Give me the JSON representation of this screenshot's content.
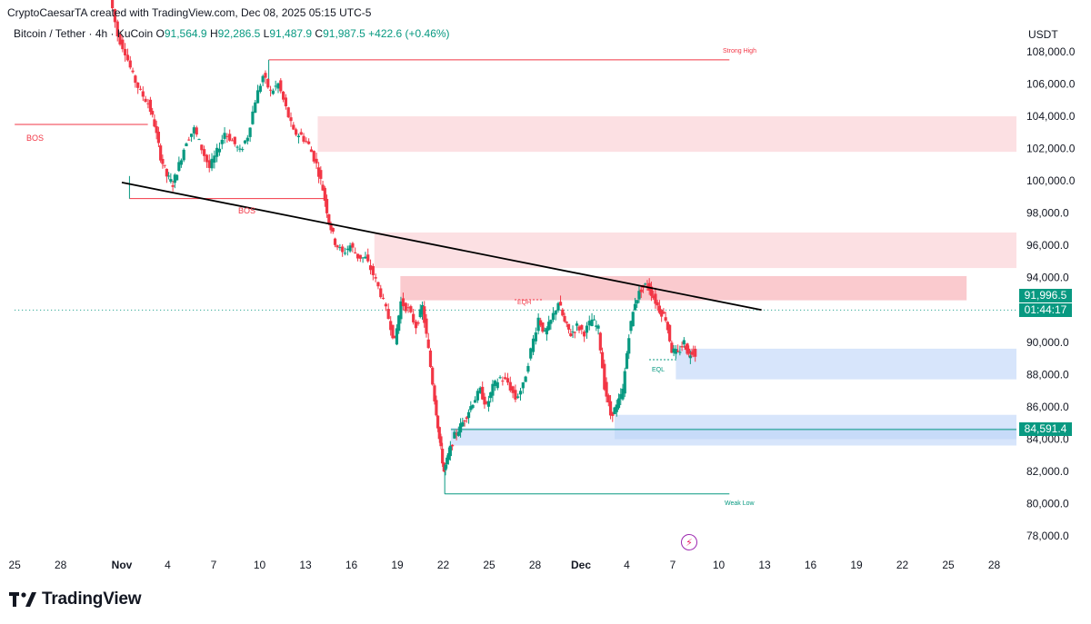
{
  "header": {
    "attribution": "CryptoCaesarTA created with TradingView.com, Dec 08, 2025 05:15 UTC-5",
    "symbol": "Bitcoin / Tether · 4h · KuCoin",
    "open_label": "O",
    "open": "91,564.9",
    "high_label": "H",
    "high": "92,286.5",
    "low_label": "L",
    "low": "91,487.9",
    "close_label": "C",
    "close": "91,987.5",
    "change": "+422.6 (+0.46%)"
  },
  "axis": {
    "currency": "USDT"
  },
  "brand": {
    "name": "TradingView"
  },
  "badges": {
    "last_price": "91,996.5",
    "countdown": "01:44:17",
    "support_price": "84,591.4"
  },
  "annotations": {
    "strong_high": "Strong High",
    "weak_low": "Weak Low",
    "bos_left": "BOS",
    "bos_mid": "BOS",
    "eqh": "EQH",
    "eql": "EQL"
  },
  "colors": {
    "up": "#089981",
    "down": "#f23645",
    "supply": "#f8bbc0",
    "supply_strong": "#f7a6ae",
    "demand": "#bcd4f8",
    "trendline": "#000000"
  },
  "chart_data": {
    "type": "candlestick",
    "title": "Bitcoin / Tether · 4h · KuCoin",
    "timeframe": "4h",
    "ylim": [
      76500,
      109500
    ],
    "y_ticks": [
      78000,
      80000,
      82000,
      84000,
      86000,
      88000,
      90000,
      92000,
      94000,
      96000,
      98000,
      100000,
      102000,
      104000,
      106000,
      108000
    ],
    "x_ticks": [
      "25",
      "28",
      "Nov",
      "4",
      "7",
      "10",
      "13",
      "16",
      "19",
      "22",
      "25",
      "28",
      "Dec",
      "4",
      "7",
      "10",
      "13",
      "16",
      "19",
      "22",
      "25",
      "28"
    ],
    "x_tick_days": [
      -7,
      -4,
      0,
      3,
      6,
      9,
      12,
      15,
      18,
      21,
      24,
      27,
      30,
      33,
      36,
      39,
      42,
      45,
      48,
      51,
      54,
      57
    ],
    "price_path": [
      [
        -0.7,
        111500
      ],
      [
        -0.2,
        109000
      ],
      [
        0.3,
        108000
      ],
      [
        0.8,
        106500
      ],
      [
        1.3,
        105500
      ],
      [
        1.8,
        104800
      ],
      [
        2.2,
        103500
      ],
      [
        2.6,
        101500
      ],
      [
        3.0,
        100300
      ],
      [
        3.4,
        99800
      ],
      [
        3.8,
        101000
      ],
      [
        4.3,
        102500
      ],
      [
        4.8,
        103200
      ],
      [
        5.3,
        102000
      ],
      [
        5.8,
        100800
      ],
      [
        6.3,
        101800
      ],
      [
        6.8,
        103000
      ],
      [
        7.3,
        102500
      ],
      [
        7.8,
        101800
      ],
      [
        8.3,
        102800
      ],
      [
        8.8,
        105000
      ],
      [
        9.3,
        106500
      ],
      [
        9.8,
        105500
      ],
      [
        10.3,
        106000
      ],
      [
        10.8,
        104500
      ],
      [
        11.3,
        103000
      ],
      [
        11.8,
        102800
      ],
      [
        12.3,
        102200
      ],
      [
        12.8,
        101000
      ],
      [
        13.2,
        99500
      ],
      [
        13.6,
        97500
      ],
      [
        14.0,
        96200
      ],
      [
        14.5,
        95500
      ],
      [
        15.0,
        96000
      ],
      [
        15.5,
        95300
      ],
      [
        16.0,
        95200
      ],
      [
        16.5,
        94200
      ],
      [
        17.0,
        93000
      ],
      [
        17.5,
        91500
      ],
      [
        17.9,
        90000
      ],
      [
        18.3,
        92500
      ],
      [
        18.8,
        92000
      ],
      [
        19.3,
        91000
      ],
      [
        19.7,
        92200
      ],
      [
        20.1,
        89500
      ],
      [
        20.5,
        86500
      ],
      [
        20.8,
        84000
      ],
      [
        21.1,
        82000
      ],
      [
        21.4,
        83000
      ],
      [
        21.8,
        84200
      ],
      [
        22.2,
        84800
      ],
      [
        22.6,
        85500
      ],
      [
        23.0,
        86300
      ],
      [
        23.5,
        87000
      ],
      [
        23.9,
        86000
      ],
      [
        24.3,
        87200
      ],
      [
        24.8,
        87800
      ],
      [
        25.3,
        87500
      ],
      [
        25.8,
        86500
      ],
      [
        26.3,
        87300
      ],
      [
        26.8,
        89500
      ],
      [
        27.3,
        91500
      ],
      [
        27.7,
        90500
      ],
      [
        28.1,
        91300
      ],
      [
        28.6,
        92500
      ],
      [
        29.0,
        91200
      ],
      [
        29.4,
        90500
      ],
      [
        29.8,
        91000
      ],
      [
        30.3,
        90600
      ],
      [
        30.8,
        91400
      ],
      [
        31.2,
        90800
      ],
      [
        31.6,
        87300
      ],
      [
        32.0,
        85500
      ],
      [
        32.4,
        86000
      ],
      [
        32.8,
        87000
      ],
      [
        33.2,
        90500
      ],
      [
        33.6,
        92500
      ],
      [
        34.0,
        93300
      ],
      [
        34.4,
        93600
      ],
      [
        34.8,
        92800
      ],
      [
        35.2,
        92000
      ],
      [
        35.6,
        91500
      ],
      [
        36.0,
        89500
      ],
      [
        36.4,
        89300
      ],
      [
        36.8,
        90000
      ],
      [
        37.1,
        89200
      ],
      [
        37.4,
        89600
      ],
      [
        37.8,
        88700
      ],
      [
        38.1,
        89100
      ],
      [
        38.5,
        91500
      ],
      [
        38.9,
        91900
      ],
      [
        39.2,
        92000
      ]
    ],
    "trendline": {
      "from": [
        0,
        99900
      ],
      "to": [
        41.8,
        92000
      ]
    },
    "zones": [
      {
        "kind": "supply",
        "x0": 12.8,
        "x1": 60,
        "y0": 101800,
        "y1": 104000
      },
      {
        "kind": "supply",
        "x0": 16.5,
        "x1": 60,
        "y0": 94600,
        "y1": 96800
      },
      {
        "kind": "supply_strong",
        "x0": 18.2,
        "x1": 55.2,
        "y0": 92600,
        "y1": 94100
      },
      {
        "kind": "demand",
        "x0": 36.2,
        "x1": 60,
        "y0": 87700,
        "y1": 89600
      },
      {
        "kind": "demand",
        "x0": 21.5,
        "x1": 60,
        "y0": 83600,
        "y1": 84700
      },
      {
        "kind": "demand",
        "x0": 32.2,
        "x1": 60,
        "y0": 84000,
        "y1": 85500
      }
    ],
    "levels": [
      {
        "name": "strong-high",
        "x0": 9.6,
        "x1": 39.7,
        "y": 107500,
        "color": "#f23645"
      },
      {
        "name": "weak-low",
        "x0": 21.1,
        "x1": 39.7,
        "y": 80600,
        "color": "#089981"
      },
      {
        "name": "bos-left",
        "x0": -7.0,
        "x1": 1.7,
        "y": 103500,
        "color": "#f23645"
      },
      {
        "name": "bos-mid",
        "x0": 0.5,
        "x1": 13.2,
        "y": 98900,
        "color": "#f23645"
      },
      {
        "name": "support",
        "x0": 21.5,
        "x1": 62,
        "y": 84591.4,
        "color": "#089981"
      },
      {
        "name": "last-price",
        "x0": -7.0,
        "x1": 62,
        "y": 91996.5,
        "color": "#089981",
        "dotted": true
      }
    ]
  }
}
